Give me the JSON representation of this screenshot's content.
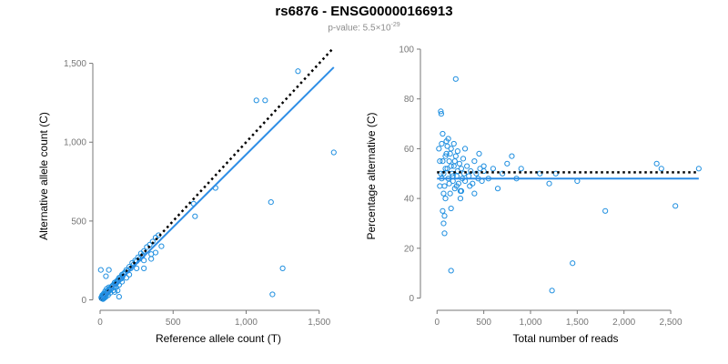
{
  "title": "rs6876 - ENSG00000166913",
  "subtitle": {
    "prefix": "p-value: 5.5×10",
    "exponent": "-29"
  },
  "colors": {
    "points": "#1f8fe0",
    "fit_line": "#2e8ee6",
    "reference_line": "#000000",
    "axis": "#777777"
  },
  "chart_data": [
    {
      "type": "scatter",
      "title": "",
      "xlabel": "Reference allele count (T)",
      "ylabel": "Alternative allele count (C)",
      "xlim": [
        0,
        1620
      ],
      "ylim": [
        -20,
        1590
      ],
      "xticks": [
        0,
        500,
        1000,
        1500
      ],
      "xtick_labels": [
        "0",
        "500",
        "1,000",
        "1,500"
      ],
      "yticks": [
        0,
        500,
        1000,
        1500
      ],
      "ytick_labels": [
        "0",
        "500",
        "1,000",
        "1,500"
      ],
      "grid": false,
      "reference_line": {
        "style": "dotted",
        "points": [
          [
            0,
            0
          ],
          [
            1600,
            1600
          ]
        ]
      },
      "fit_line": {
        "style": "solid",
        "points": [
          [
            0,
            0
          ],
          [
            1600,
            1475
          ]
        ]
      },
      "points": [
        [
          10,
          10
        ],
        [
          15,
          18
        ],
        [
          20,
          25
        ],
        [
          25,
          20
        ],
        [
          30,
          35
        ],
        [
          35,
          30
        ],
        [
          40,
          45
        ],
        [
          45,
          40
        ],
        [
          50,
          55
        ],
        [
          55,
          50
        ],
        [
          60,
          65
        ],
        [
          65,
          60
        ],
        [
          70,
          75
        ],
        [
          75,
          70
        ],
        [
          80,
          85
        ],
        [
          85,
          90
        ],
        [
          90,
          95
        ],
        [
          95,
          85
        ],
        [
          100,
          110
        ],
        [
          105,
          100
        ],
        [
          110,
          115
        ],
        [
          115,
          110
        ],
        [
          120,
          125
        ],
        [
          125,
          120
        ],
        [
          130,
          140
        ],
        [
          135,
          130
        ],
        [
          140,
          145
        ],
        [
          145,
          135
        ],
        [
          150,
          160
        ],
        [
          155,
          150
        ],
        [
          160,
          165
        ],
        [
          170,
          175
        ],
        [
          180,
          190
        ],
        [
          190,
          185
        ],
        [
          200,
          210
        ],
        [
          210,
          200
        ],
        [
          220,
          235
        ],
        [
          230,
          225
        ],
        [
          240,
          250
        ],
        [
          250,
          245
        ],
        [
          260,
          270
        ],
        [
          270,
          260
        ],
        [
          280,
          295
        ],
        [
          290,
          280
        ],
        [
          300,
          310
        ],
        [
          320,
          335
        ],
        [
          340,
          350
        ],
        [
          360,
          370
        ],
        [
          380,
          395
        ],
        [
          400,
          410
        ],
        [
          20,
          5
        ],
        [
          30,
          12
        ],
        [
          40,
          20
        ],
        [
          55,
          30
        ],
        [
          70,
          45
        ],
        [
          90,
          60
        ],
        [
          110,
          80
        ],
        [
          130,
          95
        ],
        [
          150,
          115
        ],
        [
          180,
          140
        ],
        [
          200,
          160
        ],
        [
          250,
          200
        ],
        [
          300,
          250
        ],
        [
          350,
          290
        ],
        [
          380,
          300
        ],
        [
          420,
          340
        ],
        [
          350,
          260
        ],
        [
          300,
          200
        ],
        [
          25,
          40
        ],
        [
          35,
          55
        ],
        [
          45,
          70
        ],
        [
          60,
          80
        ],
        [
          15,
          30
        ],
        [
          8,
          15
        ],
        [
          12,
          22
        ],
        [
          18,
          12
        ],
        [
          22,
          8
        ],
        [
          28,
          18
        ],
        [
          5,
          190
        ],
        [
          40,
          150
        ],
        [
          60,
          190
        ],
        [
          100,
          50
        ],
        [
          120,
          60
        ],
        [
          130,
          20
        ],
        [
          650,
          530
        ],
        [
          640,
          610
        ],
        [
          790,
          710
        ],
        [
          1070,
          1265
        ],
        [
          1130,
          1265
        ],
        [
          1355,
          1450
        ],
        [
          1600,
          935
        ],
        [
          1170,
          620
        ],
        [
          1180,
          35
        ],
        [
          1250,
          200
        ]
      ]
    },
    {
      "type": "scatter",
      "title": "",
      "xlabel": "Total number of reads",
      "ylabel": "Percentage alternative (C)",
      "xlim": [
        -100,
        2850
      ],
      "ylim": [
        -2,
        100
      ],
      "xticks": [
        0,
        500,
        1000,
        1500,
        2000,
        2500
      ],
      "xtick_labels": [
        "0",
        "500",
        "1,000",
        "1,500",
        "2,000",
        "2,500"
      ],
      "yticks": [
        0,
        20,
        40,
        60,
        80,
        100
      ],
      "ytick_labels": [
        "0",
        "20",
        "40",
        "60",
        "80",
        "100"
      ],
      "grid": false,
      "reference_line": {
        "style": "dotted",
        "y": 50.5,
        "x": [
          0,
          2800
        ]
      },
      "fit_line": {
        "style": "solid",
        "y": 48,
        "x": [
          0,
          2800
        ]
      },
      "points": [
        [
          20,
          60
        ],
        [
          30,
          45
        ],
        [
          40,
          75
        ],
        [
          45,
          74
        ],
        [
          50,
          62
        ],
        [
          60,
          55
        ],
        [
          70,
          50
        ],
        [
          80,
          45
        ],
        [
          90,
          40
        ],
        [
          100,
          58
        ],
        [
          110,
          52
        ],
        [
          120,
          48
        ],
        [
          130,
          55
        ],
        [
          140,
          42
        ],
        [
          150,
          60
        ],
        [
          160,
          50
        ],
        [
          170,
          47
        ],
        [
          180,
          53
        ],
        [
          190,
          44
        ],
        [
          200,
          57
        ],
        [
          210,
          49
        ],
        [
          220,
          51
        ],
        [
          230,
          46
        ],
        [
          240,
          54
        ],
        [
          250,
          43
        ],
        [
          260,
          52
        ],
        [
          270,
          48
        ],
        [
          280,
          56
        ],
        [
          290,
          50
        ],
        [
          300,
          47
        ],
        [
          320,
          53
        ],
        [
          340,
          49
        ],
        [
          360,
          51
        ],
        [
          380,
          46
        ],
        [
          400,
          55
        ],
        [
          420,
          50
        ],
        [
          440,
          48
        ],
        [
          460,
          52
        ],
        [
          480,
          47
        ],
        [
          500,
          51
        ],
        [
          30,
          55
        ],
        [
          50,
          48
        ],
        [
          70,
          42
        ],
        [
          90,
          57
        ],
        [
          110,
          61
        ],
        [
          130,
          46
        ],
        [
          150,
          53
        ],
        [
          170,
          49
        ],
        [
          190,
          55
        ],
        [
          210,
          45
        ],
        [
          60,
          35
        ],
        [
          80,
          33
        ],
        [
          70,
          30
        ],
        [
          80,
          26
        ],
        [
          60,
          66
        ],
        [
          100,
          63
        ],
        [
          120,
          64
        ],
        [
          140,
          58
        ],
        [
          90,
          52
        ],
        [
          40,
          50
        ],
        [
          150,
          11
        ],
        [
          200,
          88
        ],
        [
          250,
          40
        ],
        [
          300,
          60
        ],
        [
          350,
          45
        ],
        [
          400,
          42
        ],
        [
          450,
          58
        ],
        [
          500,
          53
        ],
        [
          550,
          48
        ],
        [
          600,
          52
        ],
        [
          650,
          44
        ],
        [
          700,
          50
        ],
        [
          750,
          54
        ],
        [
          800,
          57
        ],
        [
          850,
          48
        ],
        [
          900,
          52
        ],
        [
          150,
          36
        ],
        [
          180,
          62
        ],
        [
          220,
          59
        ],
        [
          260,
          43
        ],
        [
          1100,
          50
        ],
        [
          1200,
          46
        ],
        [
          1230,
          3
        ],
        [
          1270,
          50
        ],
        [
          1450,
          14
        ],
        [
          1500,
          47
        ],
        [
          1800,
          35
        ],
        [
          2350,
          54
        ],
        [
          2400,
          52
        ],
        [
          2550,
          37
        ],
        [
          2800,
          52
        ]
      ]
    }
  ]
}
